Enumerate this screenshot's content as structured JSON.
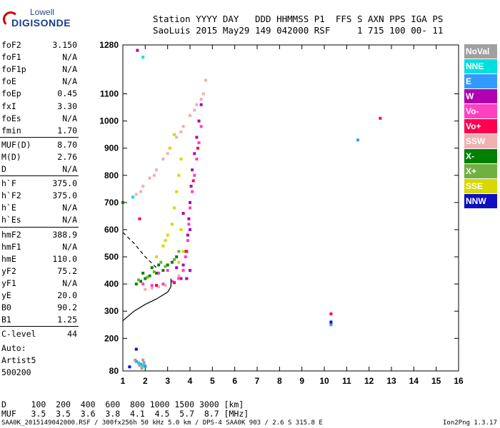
{
  "logo": {
    "top": "Lowell",
    "main": "DIGISONDE"
  },
  "header": {
    "line1": "Station YYYY DAY   DDD HHMMSS P1  FFS S AXN PPS IGA PS",
    "line2": "SaoLuis 2015 May29 149 042000 RSF     1 715 100 00- 11"
  },
  "params": [
    {
      "name": "foF2",
      "value": "3.150"
    },
    {
      "name": "foF1",
      "value": "N/A"
    },
    {
      "name": "foF1p",
      "value": "N/A"
    },
    {
      "name": "foE",
      "value": "N/A"
    },
    {
      "name": "foEp",
      "value": "0.45"
    },
    {
      "name": "fxI",
      "value": "3.30"
    },
    {
      "name": "foEs",
      "value": "N/A"
    },
    {
      "name": "fmin",
      "value": "1.70"
    },
    {
      "name": "MUF(D)",
      "value": "8.70"
    },
    {
      "name": "M(D)",
      "value": "2.76"
    },
    {
      "name": "D",
      "value": "N/A"
    },
    {
      "name": "h`F",
      "value": "375.0"
    },
    {
      "name": "h`F2",
      "value": "375.0"
    },
    {
      "name": "h`E",
      "value": "N/A"
    },
    {
      "name": "h`Es",
      "value": "N/A"
    },
    {
      "name": "hmF2",
      "value": "388.9"
    },
    {
      "name": "hmF1",
      "value": "N/A"
    },
    {
      "name": "hmE",
      "value": "110.0"
    },
    {
      "name": "yF2",
      "value": "75.2"
    },
    {
      "name": "yF1",
      "value": "N/A"
    },
    {
      "name": "yE",
      "value": "20.0"
    },
    {
      "name": "B0",
      "value": "90.2"
    },
    {
      "name": "B1",
      "value": "1.25"
    },
    {
      "name": "C-level",
      "value": "44"
    }
  ],
  "auto": {
    "line1": "Auto:",
    "line2": "Artist5",
    "line3": "500200"
  },
  "legend": [
    {
      "label": "NoVal",
      "color": "#a0a0a0"
    },
    {
      "label": "NNE",
      "color": "#00e0e0"
    },
    {
      "label": "E",
      "color": "#3399ff"
    },
    {
      "label": "W",
      "color": "#b000b0"
    },
    {
      "label": "Vo-",
      "color": "#ff40c0"
    },
    {
      "label": "Vo+",
      "color": "#ff0050"
    },
    {
      "label": "SSW",
      "color": "#f0b0b0"
    },
    {
      "label": "X-",
      "color": "#008000"
    },
    {
      "label": "X+",
      "color": "#70b040"
    },
    {
      "label": "SSE",
      "color": "#d8d800"
    },
    {
      "label": "NNW",
      "color": "#1010c0"
    }
  ],
  "bottom": {
    "line1": "D     100  200  400  600  800 1000 1500 3000 [km]",
    "line2": "MUF   3.5  3.5  3.6  3.8  4.1  4.5  5.7  8.7 [MHz]"
  },
  "footer": {
    "left": "SAA0K_2015149042000.RSF / 300fx256h 50 kHz 5.0 km / DPS-4 SAA0K 903 / 2.6 S 315.8 E",
    "right": "Ion2Png 1.3.17"
  },
  "chart_data": {
    "type": "scatter",
    "title": "",
    "xlabel": "",
    "ylabel": "",
    "xlim": [
      1,
      16
    ],
    "ylim": [
      80,
      1280
    ],
    "x_ticks": [
      1,
      2,
      3,
      4,
      5,
      6,
      7,
      8,
      9,
      10,
      11,
      12,
      13,
      14,
      15,
      16
    ],
    "y_ticks": [
      80,
      200,
      300,
      400,
      500,
      600,
      700,
      800,
      900,
      1000,
      1100,
      1280
    ],
    "profile_line": {
      "x": [
        1.0,
        1.5,
        2.0,
        2.5,
        3.0,
        3.15,
        3.15
      ],
      "y": [
        265,
        300,
        325,
        345,
        370,
        390,
        420
      ]
    },
    "dashed_line": {
      "x": [
        1.0,
        1.5,
        2.0,
        2.5
      ],
      "y": [
        590,
        550,
        500,
        460
      ]
    },
    "series": [
      {
        "name": "SSW",
        "color": "#f0b0b0",
        "points": [
          [
            1.6,
            730
          ],
          [
            1.9,
            760
          ],
          [
            2.2,
            790
          ],
          [
            2.5,
            820
          ],
          [
            2.8,
            860
          ],
          [
            3.1,
            900
          ],
          [
            3.4,
            940
          ],
          [
            3.7,
            980
          ],
          [
            4.0,
            1020
          ],
          [
            4.3,
            1060
          ],
          [
            4.6,
            1100
          ],
          [
            4.7,
            1150
          ],
          [
            1.8,
            740
          ],
          [
            2.4,
            800
          ],
          [
            3.0,
            880
          ],
          [
            3.6,
            960
          ],
          [
            4.2,
            1040
          ],
          [
            4.5,
            1080
          ],
          [
            2.0,
            380
          ],
          [
            2.3,
            385
          ],
          [
            2.6,
            390
          ],
          [
            2.9,
            395
          ],
          [
            3.2,
            410
          ],
          [
            3.5,
            430
          ]
        ]
      },
      {
        "name": "W",
        "color": "#b000b0",
        "points": [
          [
            3.6,
            420
          ],
          [
            3.7,
            470
          ],
          [
            3.8,
            520
          ],
          [
            3.9,
            580
          ],
          [
            3.95,
            640
          ],
          [
            4.0,
            700
          ],
          [
            4.05,
            760
          ],
          [
            4.1,
            820
          ],
          [
            4.2,
            880
          ],
          [
            4.3,
            940
          ],
          [
            4.4,
            1000
          ],
          [
            4.5,
            1060
          ],
          [
            4.0,
            600
          ],
          [
            3.7,
            660
          ],
          [
            3.4,
            460
          ],
          [
            1.65,
            1260
          ],
          [
            3.85,
            420
          ],
          [
            4.0,
            450
          ]
        ]
      },
      {
        "name": "Vo-",
        "color": "#ff40c0",
        "points": [
          [
            1.9,
            400
          ],
          [
            2.3,
            395
          ],
          [
            2.8,
            400
          ],
          [
            3.2,
            410
          ],
          [
            3.5,
            420
          ],
          [
            3.7,
            450
          ],
          [
            3.8,
            500
          ],
          [
            3.9,
            560
          ],
          [
            3.95,
            620
          ],
          [
            4.0,
            680
          ],
          [
            4.1,
            740
          ],
          [
            4.2,
            800
          ],
          [
            4.3,
            860
          ],
          [
            4.4,
            920
          ],
          [
            4.5,
            980
          ],
          [
            2.6,
            440
          ],
          [
            3.0,
            450
          ]
        ]
      },
      {
        "name": "Vo+",
        "color": "#ff0050",
        "points": [
          [
            2.5,
            395
          ],
          [
            3.3,
            405
          ],
          [
            3.85,
            520
          ],
          [
            4.15,
            780
          ],
          [
            4.35,
            900
          ],
          [
            1.75,
            640
          ],
          [
            12.5,
            1010
          ],
          [
            10.3,
            290
          ]
        ]
      },
      {
        "name": "X-",
        "color": "#008000",
        "points": [
          [
            1.6,
            400
          ],
          [
            1.8,
            410
          ],
          [
            2.0,
            420
          ],
          [
            2.2,
            430
          ],
          [
            2.5,
            440
          ],
          [
            2.8,
            450
          ],
          [
            3.0,
            470
          ],
          [
            3.2,
            480
          ],
          [
            3.4,
            500
          ],
          [
            1.9,
            440
          ],
          [
            2.3,
            460
          ],
          [
            2.6,
            470
          ],
          [
            1.0,
            700
          ]
        ]
      },
      {
        "name": "X+",
        "color": "#70b040",
        "points": [
          [
            1.7,
            415
          ],
          [
            2.1,
            425
          ],
          [
            2.4,
            445
          ],
          [
            2.9,
            465
          ],
          [
            3.3,
            490
          ],
          [
            3.5,
            520
          ],
          [
            2.7,
            480
          ]
        ]
      },
      {
        "name": "SSE",
        "color": "#d8d800",
        "points": [
          [
            2.5,
            500
          ],
          [
            2.8,
            540
          ],
          [
            3.0,
            580
          ],
          [
            3.2,
            620
          ],
          [
            3.3,
            680
          ],
          [
            3.4,
            740
          ],
          [
            3.5,
            800
          ],
          [
            3.6,
            860
          ],
          [
            3.1,
            900
          ],
          [
            3.3,
            950
          ],
          [
            2.9,
            560
          ],
          [
            3.5,
            480
          ],
          [
            3.7,
            520
          ],
          [
            3.6,
            600
          ]
        ]
      },
      {
        "name": "NNE",
        "color": "#00e0e0",
        "points": [
          [
            1.9,
            1235
          ],
          [
            10.3,
            255
          ],
          [
            1.45,
            720
          ],
          [
            1.7,
            110
          ],
          [
            1.9,
            100
          ],
          [
            2.0,
            95
          ]
        ]
      },
      {
        "name": "E",
        "color": "#3399ff",
        "points": [
          [
            10.3,
            250
          ],
          [
            11.5,
            930
          ],
          [
            1.8,
            105
          ],
          [
            1.6,
            115
          ],
          [
            2.0,
            98
          ]
        ]
      },
      {
        "name": "NNW",
        "color": "#1010c0",
        "points": [
          [
            1.6,
            160
          ],
          [
            10.3,
            260
          ],
          [
            1.3,
            95
          ]
        ]
      },
      {
        "name": "NoVal",
        "color": "#a0a0a0",
        "points": [
          [
            1.55,
            120
          ],
          [
            1.85,
            90
          ],
          [
            1.95,
            110
          ],
          [
            1.75,
            100
          ],
          [
            1.9,
            120
          ]
        ]
      }
    ]
  }
}
